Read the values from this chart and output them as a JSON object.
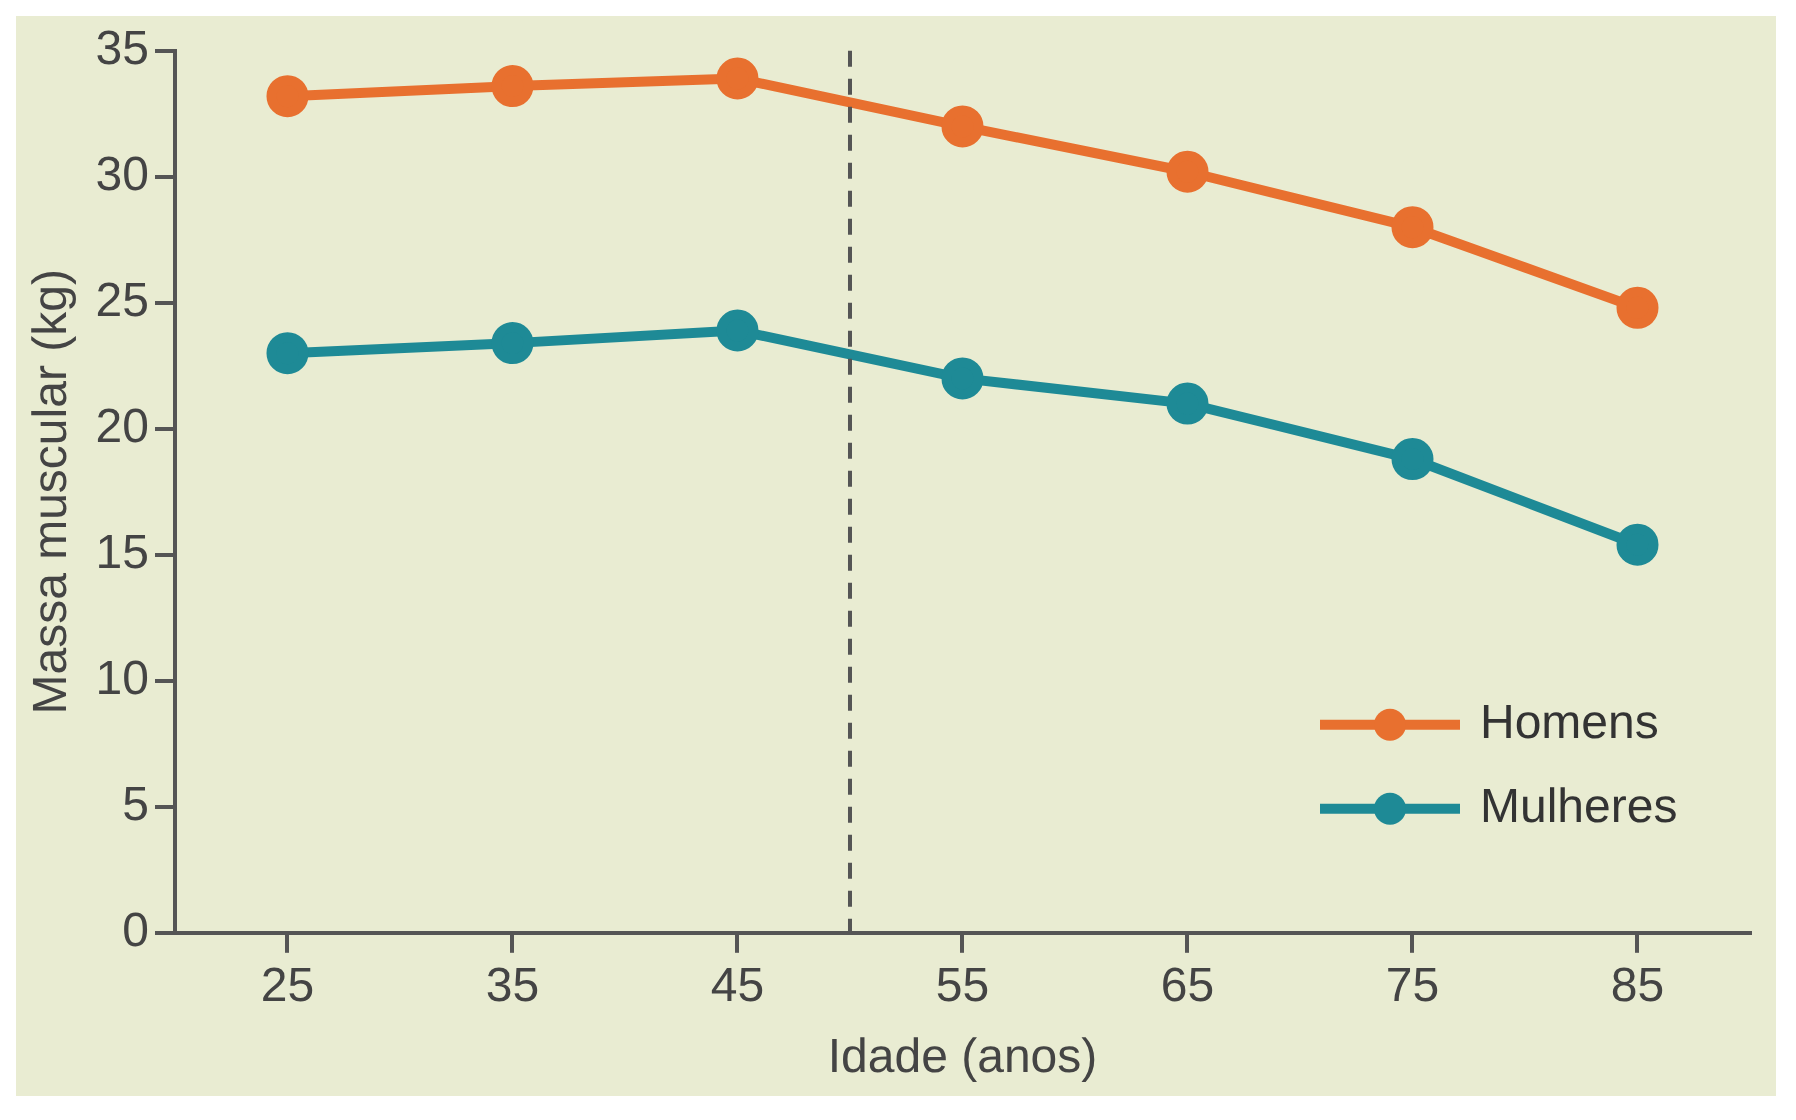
{
  "chart_data": {
    "type": "line",
    "xlabel": "Idade (anos)",
    "ylabel": "Massa muscular (kg)",
    "x": [
      25,
      35,
      45,
      55,
      65,
      75,
      85
    ],
    "series": [
      {
        "name": "Homens",
        "color": "#e8702f",
        "values": [
          33.2,
          33.6,
          33.9,
          32.0,
          30.2,
          28.0,
          24.8
        ]
      },
      {
        "name": "Mulheres",
        "color": "#1e8a96",
        "values": [
          23.0,
          23.4,
          23.9,
          22.0,
          21.0,
          18.8,
          15.4
        ]
      }
    ],
    "xlim": [
      20,
      90
    ],
    "xticks": [
      25,
      35,
      45,
      55,
      65,
      75,
      85
    ],
    "ylim": [
      0,
      35
    ],
    "yticks": [
      0,
      5,
      10,
      15,
      20,
      25,
      30,
      35
    ],
    "ref_lines": [
      {
        "axis": "x",
        "value": 50,
        "color": "#555555",
        "line_style": "dashed"
      }
    ],
    "marker": "circle",
    "line_style": "solid",
    "grid": false,
    "legend": "bottom right"
  }
}
